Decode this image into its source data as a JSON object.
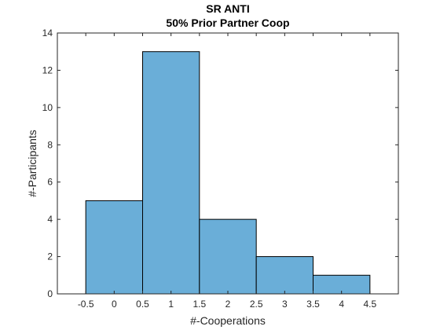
{
  "chart_data": {
    "type": "bar",
    "title": "SR ANTI",
    "subtitle": "50% Prior Partner Coop",
    "xlabel": "#-Cooperations",
    "ylabel": "#-Participants",
    "bin_edges": [
      -0.5,
      0.5,
      1.5,
      2.5,
      3.5,
      4.5
    ],
    "values": [
      5,
      13,
      4,
      2,
      1
    ],
    "xlim": [
      -1,
      5
    ],
    "ylim": [
      0,
      14
    ],
    "xticks": [
      -0.5,
      0,
      0.5,
      1,
      1.5,
      2,
      2.5,
      3,
      3.5,
      4,
      4.5
    ],
    "xtick_labels": [
      "-0.5",
      "0",
      "0.5",
      "1",
      "1.5",
      "2",
      "2.5",
      "3",
      "3.5",
      "4",
      "4.5"
    ],
    "yticks": [
      0,
      2,
      4,
      6,
      8,
      10,
      12,
      14
    ],
    "ytick_labels": [
      "0",
      "2",
      "4",
      "6",
      "8",
      "10",
      "12",
      "14"
    ],
    "bar_color": "#6aaed8",
    "edge_color": "#000000",
    "grid": false,
    "legend": false
  }
}
